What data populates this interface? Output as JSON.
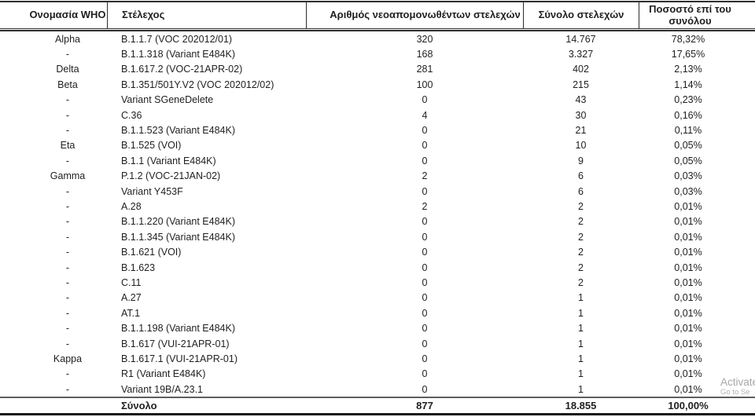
{
  "table": {
    "columns": [
      {
        "label": "Ονομασία WHO"
      },
      {
        "label": "Στέλεχος"
      },
      {
        "label": "Αριθμός νεοαπομονωθέντων στελεχών"
      },
      {
        "label": "Σύνολο στελεχών"
      },
      {
        "label": "Ποσοστό επί του συνόλου"
      }
    ],
    "rows": [
      {
        "who": "Alpha",
        "strain": "B.1.1.7 (VOC 202012/01)",
        "new_isolates": "320",
        "total_strains": "14.767",
        "percentage": "78,32%"
      },
      {
        "who": "-",
        "strain": "B.1.1.318 (Variant E484K)",
        "new_isolates": "168",
        "total_strains": "3.327",
        "percentage": "17,65%"
      },
      {
        "who": "Delta",
        "strain": "B.1.617.2 (VOC-21APR-02)",
        "new_isolates": "281",
        "total_strains": "402",
        "percentage": "2,13%"
      },
      {
        "who": "Beta",
        "strain": "B.1.351/501Y.V2 (VOC 202012/02)",
        "new_isolates": "100",
        "total_strains": "215",
        "percentage": "1,14%"
      },
      {
        "who": "-",
        "strain": "Variant SGeneDelete",
        "new_isolates": "0",
        "total_strains": "43",
        "percentage": "0,23%"
      },
      {
        "who": "-",
        "strain": "C.36",
        "new_isolates": "4",
        "total_strains": "30",
        "percentage": "0,16%"
      },
      {
        "who": "-",
        "strain": "B.1.1.523 (Variant E484K)",
        "new_isolates": "0",
        "total_strains": "21",
        "percentage": "0,11%"
      },
      {
        "who": "Eta",
        "strain": "B.1.525 (VOI)",
        "new_isolates": "0",
        "total_strains": "10",
        "percentage": "0,05%"
      },
      {
        "who": "-",
        "strain": "B.1.1 (Variant E484K)",
        "new_isolates": "0",
        "total_strains": "9",
        "percentage": "0,05%"
      },
      {
        "who": "Gamma",
        "strain": "P.1.2 (VOC-21JAN-02)",
        "new_isolates": "2",
        "total_strains": "6",
        "percentage": "0,03%"
      },
      {
        "who": "-",
        "strain": "Variant Y453F",
        "new_isolates": "0",
        "total_strains": "6",
        "percentage": "0,03%"
      },
      {
        "who": "-",
        "strain": "A.28",
        "new_isolates": "2",
        "total_strains": "2",
        "percentage": "0,01%"
      },
      {
        "who": "-",
        "strain": "B.1.1.220 (Variant E484K)",
        "new_isolates": "0",
        "total_strains": "2",
        "percentage": "0,01%"
      },
      {
        "who": "-",
        "strain": "B.1.1.345 (Variant E484K)",
        "new_isolates": "0",
        "total_strains": "2",
        "percentage": "0,01%"
      },
      {
        "who": "-",
        "strain": "B.1.621 (VOI)",
        "new_isolates": "0",
        "total_strains": "2",
        "percentage": "0,01%"
      },
      {
        "who": "-",
        "strain": "B.1.623",
        "new_isolates": "0",
        "total_strains": "2",
        "percentage": "0,01%"
      },
      {
        "who": "-",
        "strain": "C.11",
        "new_isolates": "0",
        "total_strains": "2",
        "percentage": "0,01%"
      },
      {
        "who": "-",
        "strain": "A.27",
        "new_isolates": "0",
        "total_strains": "1",
        "percentage": "0,01%"
      },
      {
        "who": "-",
        "strain": "AT.1",
        "new_isolates": "0",
        "total_strains": "1",
        "percentage": "0,01%"
      },
      {
        "who": "-",
        "strain": "B.1.1.198 (Variant E484K)",
        "new_isolates": "0",
        "total_strains": "1",
        "percentage": "0,01%"
      },
      {
        "who": "-",
        "strain": "B.1.617 (VUI-21APR-01)",
        "new_isolates": "0",
        "total_strains": "1",
        "percentage": "0,01%"
      },
      {
        "who": "Kappa",
        "strain": "B.1.617.1 (VUI-21APR-01)",
        "new_isolates": "0",
        "total_strains": "1",
        "percentage": "0,01%"
      },
      {
        "who": "-",
        "strain": "R1 (Variant E484K)",
        "new_isolates": "0",
        "total_strains": "1",
        "percentage": "0,01%"
      },
      {
        "who": "-",
        "strain": "Variant 19B/A.23.1",
        "new_isolates": "0",
        "total_strains": "1",
        "percentage": "0,01%"
      }
    ],
    "total_row": {
      "label": "Σύνολο",
      "new_isolates": "877",
      "total_strains": "18.855",
      "percentage": "100,00%"
    }
  },
  "watermark": {
    "line1": "Activate",
    "line2": "Go to Se"
  },
  "colors": {
    "border_dark": "#2d2d2d",
    "border_bottom": "#161616",
    "rule_above_total": "#5e5e5e",
    "text": "#1f1f1f",
    "watermark_gray": "#a7a7a7"
  }
}
